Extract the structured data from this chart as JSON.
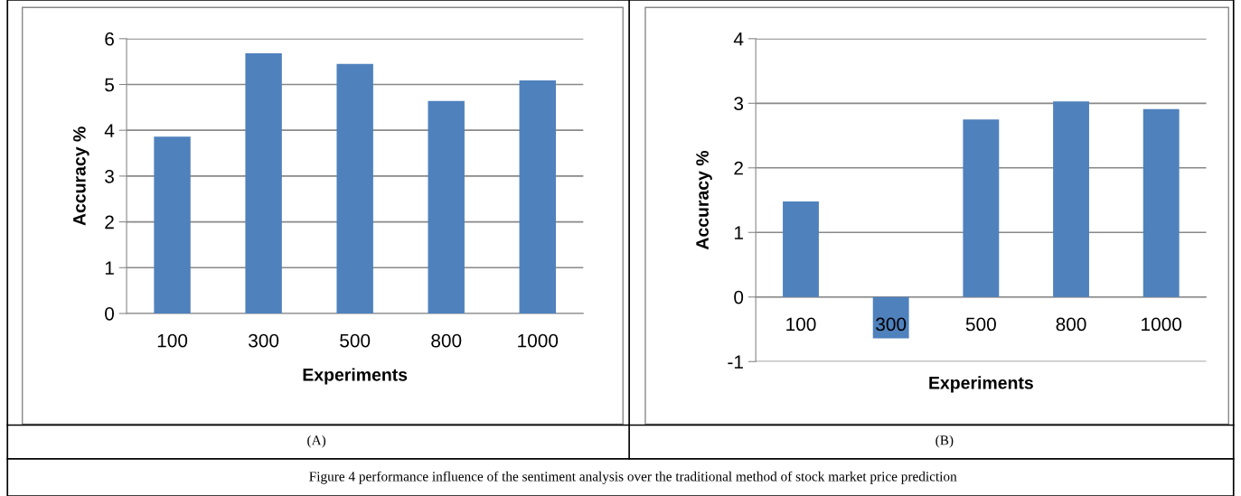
{
  "chart_data": [
    {
      "type": "bar",
      "categories": [
        "100",
        "300",
        "500",
        "800",
        "1000"
      ],
      "values": [
        3.86,
        5.68,
        5.45,
        4.64,
        5.09
      ],
      "color": "#4f81bd",
      "xlabel": "Experiments",
      "ylabel": "Accuracy %",
      "ylim": [
        0,
        6
      ],
      "yticks": [
        0,
        1,
        2,
        3,
        4,
        5,
        6
      ],
      "grid": "y",
      "legend": false,
      "annotations": [
        "(A)"
      ]
    },
    {
      "type": "bar",
      "categories": [
        "100",
        "300",
        "500",
        "800",
        "1000"
      ],
      "values": [
        1.48,
        -0.64,
        2.75,
        3.03,
        2.91
      ],
      "color": "#4f81bd",
      "xlabel": "Experiments",
      "ylabel": "Accuracy %",
      "ylim": [
        -1,
        4
      ],
      "yticks": [
        -1,
        0,
        1,
        2,
        3,
        4
      ],
      "grid": "y",
      "legend": false,
      "annotations": [
        "(B)",
        "Figure 4 performance influence of the sentiment analysis over the traditional method of stock market price prediction"
      ]
    }
  ]
}
